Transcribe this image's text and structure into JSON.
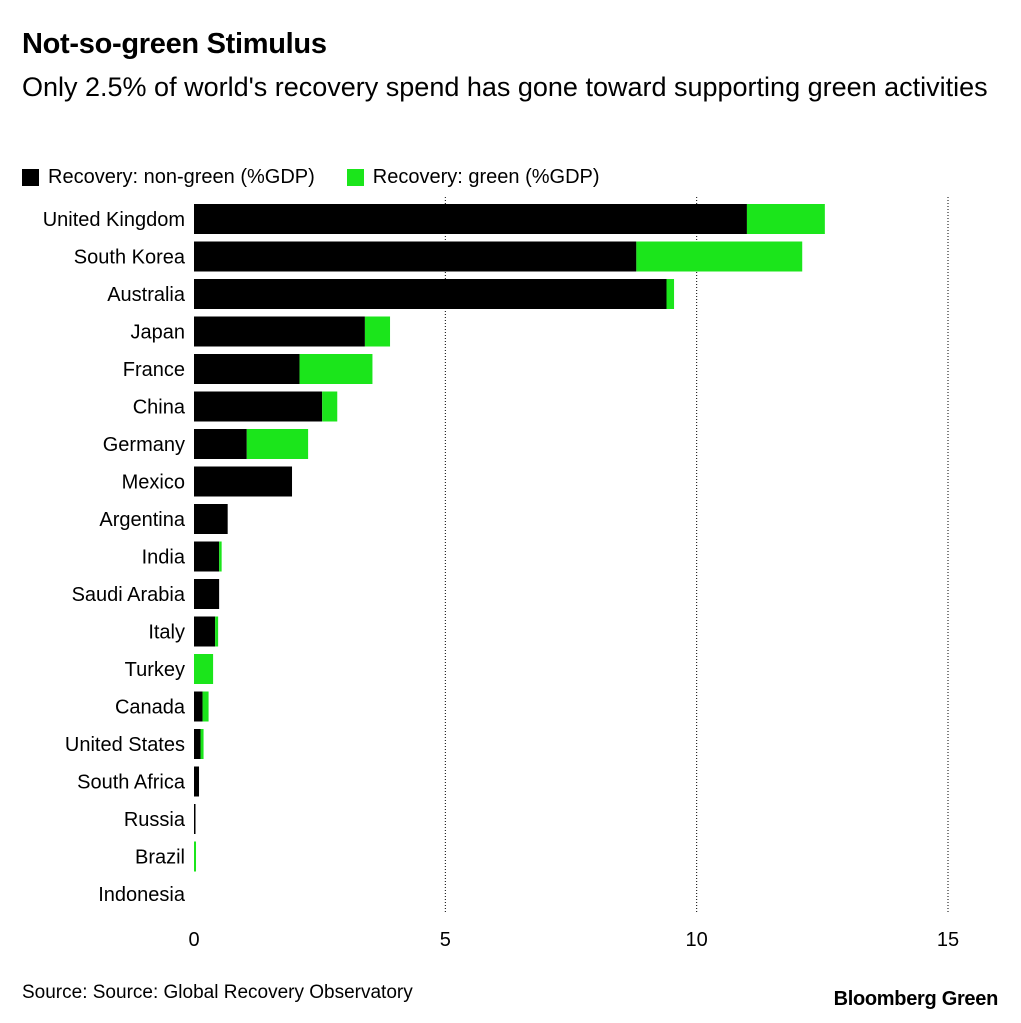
{
  "header": {
    "title": "Not-so-green Stimulus",
    "subtitle": "Only 2.5% of world's recovery spend has gone toward supporting green activities"
  },
  "legend": {
    "items": [
      {
        "label": "Recovery: non-green (%GDP)",
        "color": "#000000"
      },
      {
        "label": "Recovery: green (%GDP)",
        "color": "#1be51b"
      }
    ]
  },
  "chart_data": {
    "type": "bar",
    "orientation": "horizontal",
    "stacked": true,
    "categories": [
      "United Kingdom",
      "South Korea",
      "Australia",
      "Japan",
      "France",
      "China",
      "Germany",
      "Mexico",
      "Argentina",
      "India",
      "Saudi Arabia",
      "Italy",
      "Turkey",
      "Canada",
      "United States",
      "South Africa",
      "Russia",
      "Brazil",
      "Indonesia"
    ],
    "series": [
      {
        "name": "Recovery: non-green (%GDP)",
        "color": "#000000",
        "values": [
          11.0,
          8.8,
          9.4,
          3.4,
          2.1,
          2.55,
          1.05,
          1.95,
          0.67,
          0.5,
          0.5,
          0.42,
          0.0,
          0.17,
          0.13,
          0.1,
          0.03,
          0.0,
          0.0
        ]
      },
      {
        "name": "Recovery: green (%GDP)",
        "color": "#1be51b",
        "values": [
          1.55,
          3.3,
          0.15,
          0.5,
          1.45,
          0.3,
          1.22,
          0.0,
          0.0,
          0.05,
          0.0,
          0.06,
          0.38,
          0.12,
          0.06,
          0.0,
          0.0,
          0.04,
          0.0
        ]
      }
    ],
    "xlim": [
      0,
      15
    ],
    "xticks": [
      0,
      5,
      10,
      15
    ],
    "xtick_labels": [
      "0",
      "5",
      "10",
      "15"
    ],
    "grid": "vertical",
    "legend_position": "top-left"
  },
  "footer": {
    "source": "Source: Source: Global Recovery Observatory",
    "brand": "Bloomberg Green"
  }
}
